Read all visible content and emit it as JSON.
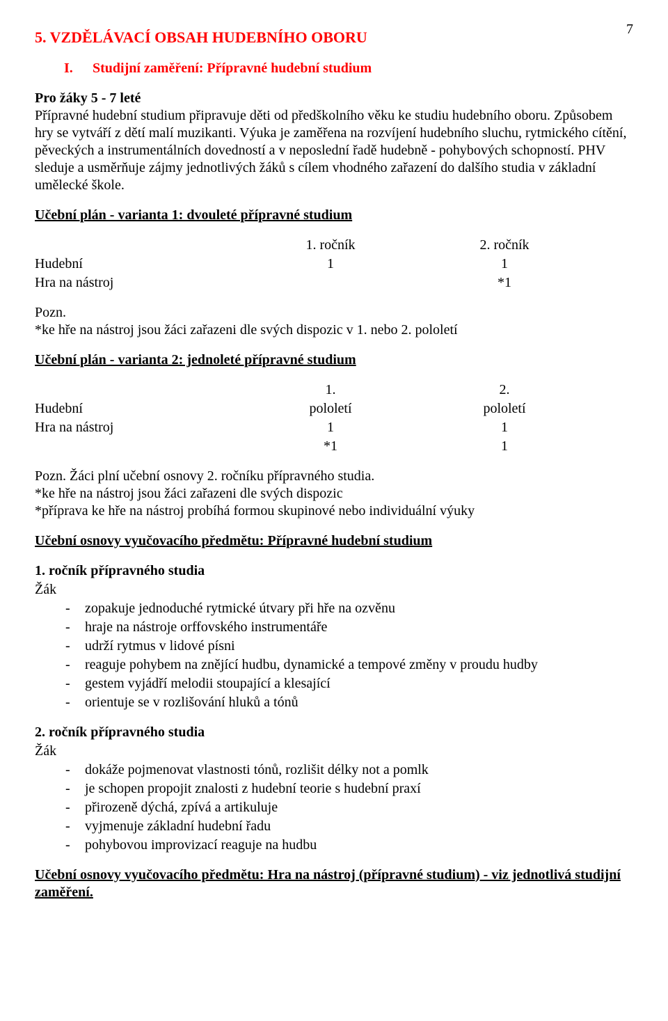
{
  "page_number": "7",
  "accent_color": "#ff0000",
  "heading_main": "5.   VZDĚLÁVACÍ OBSAH HUDEBNÍHO OBORU",
  "heading_sub_roman": "I.",
  "heading_sub_text": "Studijní zaměření: Přípravné hudební studium",
  "intro_bold": "Pro žáky 5 - 7 leté",
  "intro_para": "Přípravné hudební studium připravuje děti od předškolního věku ke studiu hudebního oboru. Způsobem hry se vytváří z dětí malí muzikanti. Výuka je zaměřena na rozvíjení hudebního sluchu, rytmického cítění, pěveckých a instrumentálních dovedností a v neposlední řadě hudebně - pohybových schopností. PHV sleduje a usměrňuje zájmy jednotlivých žáků s cílem vhodného zařazení do dalšího studia v základní umělecké škole.",
  "plan1": {
    "title": "Učební plán - varianta 1: dvouleté přípravné studium",
    "col1_head": "1. ročník",
    "col2_head": "2. ročník",
    "rows": [
      {
        "label": "Hudební",
        "c1": "1",
        "c2": "1"
      },
      {
        "label": "Hra na nástroj",
        "c1": "",
        "c2": "*1"
      }
    ],
    "note_label": "Pozn.",
    "note_line": "*ke hře na nástroj jsou žáci zařazeni dle svých dispozic v 1. nebo 2. pololetí"
  },
  "plan2": {
    "title": "Učební plán - varianta 2: jednoleté přípravné studium",
    "col1_head_top": "1.",
    "col1_head_bot": "pololetí",
    "col2_head_top": "2.",
    "col2_head_bot": "pololetí",
    "rows": [
      {
        "label": "Hudební",
        "c1": "1",
        "c2": "1"
      },
      {
        "label": "Hra na nástroj",
        "c1": "*1",
        "c2": "1"
      }
    ],
    "note1": "Pozn. Žáci plní učební osnovy 2. ročníku přípravného studia.",
    "note2": "*ke hře na nástroj jsou žáci zařazeni dle svých dispozic",
    "note3": "*příprava ke hře na nástroj probíhá formou skupinové nebo individuální výuky"
  },
  "osnovy_heading": "Učební osnovy vyučovacího předmětu: Přípravné hudební studium",
  "grade1": {
    "title": "1. ročník přípravného studia",
    "student": "Žák",
    "items": [
      "zopakuje jednoduché rytmické útvary při hře na ozvěnu",
      "hraje na nástroje orffovského instrumentáře",
      "udrží rytmus v lidové písni",
      "reaguje pohybem na znějící hudbu, dynamické a tempové změny v proudu hudby",
      "gestem vyjádří melodii stoupající a klesající",
      "orientuje se v rozlišování hluků a tónů"
    ]
  },
  "grade2": {
    "title": "2. ročník přípravného studia",
    "student": "Žák",
    "items": [
      "dokáže pojmenovat vlastnosti tónů, rozlišit délky not a pomlk",
      "je schopen propojit znalosti z hudební teorie s hudební praxí",
      "přirozeně dýchá, zpívá a artikuluje",
      "vyjmenuje základní hudební řadu",
      "pohybovou improvizací reaguje na hudbu"
    ]
  },
  "footer_heading": "Učební osnovy vyučovacího předmětu: Hra na nástroj (přípravné studium) - viz jednotlivá studijní zaměření."
}
